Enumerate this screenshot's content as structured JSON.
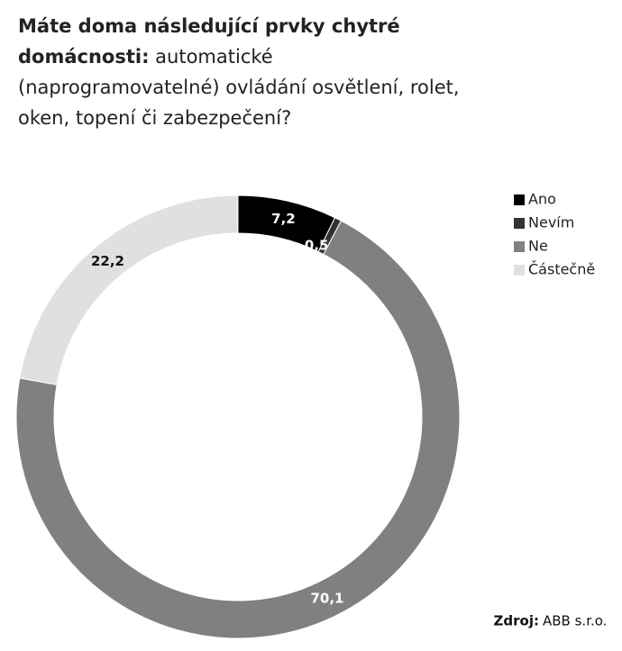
{
  "chart_data": {
    "type": "donut",
    "title": {
      "bold": "Máte doma následující prvky chytré domácnosti:",
      "text": "automatické (naprogramovatelné) ovládání osvětlení, rolet, oken, topení či zabezpečení?"
    },
    "categories": [
      "Ano",
      "Nevím",
      "Ne",
      "Částečně"
    ],
    "values": [
      7.2,
      0.5,
      70.1,
      22.2
    ],
    "value_labels": [
      "7,2",
      "0,5",
      "70,1",
      "22,2"
    ],
    "colors": [
      "#000000",
      "#333333",
      "#808080",
      "#e0e0e0"
    ],
    "legend": "top-right",
    "source": {
      "label": "Zdroj:",
      "text": "ABB s.r.o."
    }
  }
}
